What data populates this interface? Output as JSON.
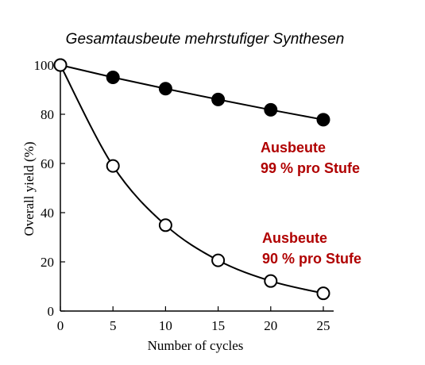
{
  "chart_data": {
    "type": "line",
    "title": "Gesamtausbeute mehrstufiger Synthesen",
    "xlabel": "Number of cycles",
    "ylabel": "Overall yield (%)",
    "xlim": [
      0,
      25
    ],
    "ylim": [
      0,
      100
    ],
    "xticks": [
      0,
      5,
      10,
      15,
      20,
      25
    ],
    "yticks": [
      0,
      20,
      40,
      60,
      80,
      100
    ],
    "x": [
      0,
      5,
      10,
      15,
      20,
      25
    ],
    "grid": false,
    "annotation_color": "#b00000",
    "series": [
      {
        "marker": "filled-circle",
        "values": [
          100,
          95,
          90.4,
          86,
          81.8,
          77.8
        ],
        "annotation": [
          "Ausbeute",
          "99 % pro Stufe"
        ]
      },
      {
        "marker": "open-circle",
        "values": [
          100,
          59,
          34.9,
          20.6,
          12.2,
          7.2
        ],
        "annotation": [
          "Ausbeute",
          "90 % pro Stufe"
        ]
      }
    ]
  }
}
